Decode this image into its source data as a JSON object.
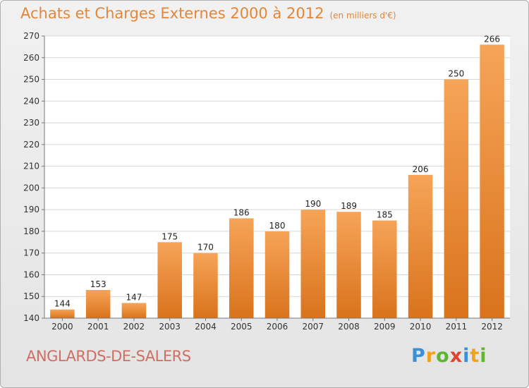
{
  "title": "Achats et Charges Externes 2000 à 2012",
  "subtitle": "(en milliers d'€)",
  "commune": "ANGLARDS-DE-SALERS",
  "logo": "Proxiti",
  "colors": {
    "bar": "#ef8f38",
    "title": "#e2863a",
    "commune": "#cf6e63"
  },
  "chart_data": {
    "type": "bar",
    "title": "Achats et Charges Externes 2000 à 2012",
    "subtitle": "(en milliers d'€)",
    "categories": [
      "2000",
      "2001",
      "2002",
      "2003",
      "2004",
      "2005",
      "2006",
      "2007",
      "2008",
      "2009",
      "2010",
      "2011",
      "2012"
    ],
    "values": [
      144,
      153,
      147,
      175,
      170,
      186,
      180,
      190,
      189,
      185,
      206,
      250,
      266
    ],
    "ylim": [
      140,
      270
    ],
    "yticks": [
      140,
      150,
      160,
      170,
      180,
      190,
      200,
      210,
      220,
      230,
      240,
      250,
      260,
      270
    ],
    "grid": true,
    "xlabel": "",
    "ylabel": ""
  }
}
